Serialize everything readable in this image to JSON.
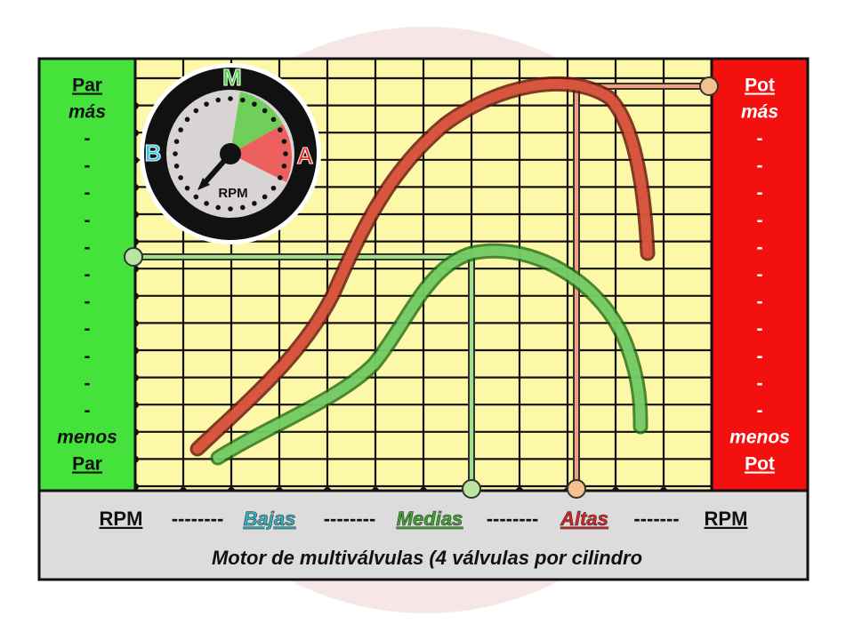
{
  "left_panel": {
    "top": [
      "Par",
      "más"
    ],
    "ticks": [
      "-",
      "-",
      "-",
      "-",
      "-",
      "-",
      "-",
      "-",
      "-",
      "-",
      "-"
    ],
    "bottom": [
      "menos",
      "Par"
    ]
  },
  "right_panel": {
    "top": [
      "Pot",
      "más"
    ],
    "ticks": [
      "-",
      "-",
      "-",
      "-",
      "-",
      "-",
      "-",
      "-",
      "-",
      "-",
      "-"
    ],
    "bottom": [
      "menos",
      "Pot"
    ]
  },
  "bottom": {
    "scale": [
      "RPM",
      "--------",
      "Bajas",
      "--------",
      "Medias",
      "--------",
      "Altas",
      "-------",
      "RPM"
    ],
    "caption": "Motor de multiválvulas (4 válvulas por cilindro"
  },
  "gauge": {
    "labels": [
      "M",
      "B",
      "A"
    ],
    "center": "RPM"
  }
}
